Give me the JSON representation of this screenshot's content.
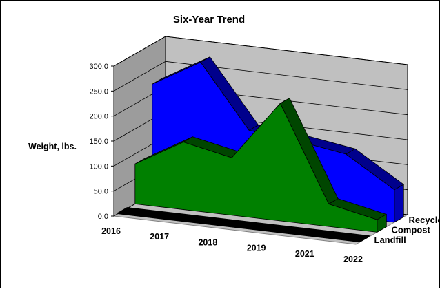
{
  "chart_data": {
    "type": "area",
    "title": "Six-Year Trend",
    "ylabel": "Weight, lbs.",
    "xlabel": "",
    "categories": [
      "2016",
      "2017",
      "2018",
      "2019",
      "2021",
      "2022"
    ],
    "ylim": [
      0,
      300
    ],
    "yticks": [
      "0.0",
      "50.0",
      "100.0",
      "150.0",
      "200.0",
      "250.0",
      "300.0"
    ],
    "grid": true,
    "series": [
      {
        "name": "Recycle",
        "values": [
          220,
          275,
          150,
          140,
          125,
          65
        ],
        "color": "#0000ff"
      },
      {
        "name": "Compost",
        "values": [
          80,
          135,
          115,
          235,
          45,
          25
        ],
        "color": "#008000"
      },
      {
        "name": "Landfill",
        "values": [
          2,
          2,
          2,
          2,
          2,
          2
        ],
        "color": "#000000"
      }
    ]
  }
}
